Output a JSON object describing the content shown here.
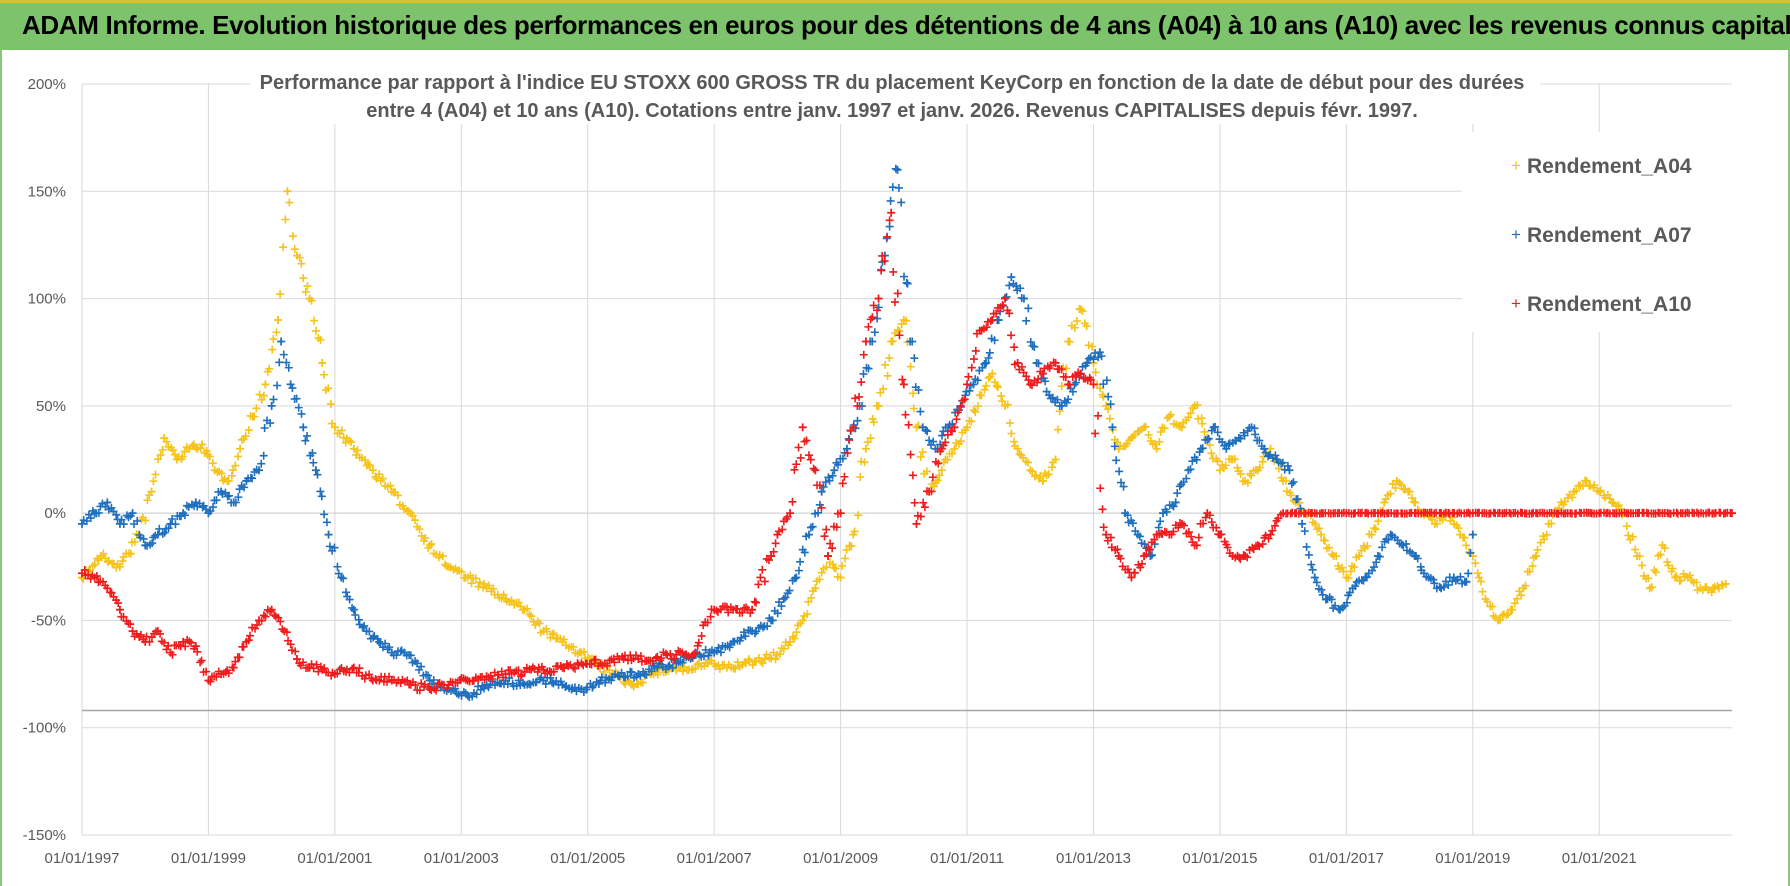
{
  "banner": {
    "title": "ADAM Informe. Evolution historique des performances en euros pour des détentions de 4 ans (A04) à 10 ans (A10) avec les revenus connus capitalisés"
  },
  "colors": {
    "banner_bg": "#7dc36b",
    "A04": "#f5c31b",
    "A07": "#1f6fbf",
    "A10": "#ee1c1c",
    "grid": "#d9d9d9"
  },
  "chart_data": {
    "type": "scatter",
    "title_lines": [
      "Performance par rapport à l'indice EU STOXX 600 GROSS TR  du placement KeyCorp en fonction de la date de début pour des durées",
      "entre 4 (A04) et 10 ans (A10).  Cotations entre janv. 1997 et janv. 2026. Revenus CAPITALISES depuis févr. 1997."
    ],
    "xlabel": "",
    "ylabel": "",
    "xlim": [
      1997.0,
      2023.1
    ],
    "ylim": [
      -150,
      200
    ],
    "y_ticks": [
      200,
      150,
      100,
      50,
      0,
      -50,
      -100,
      -150
    ],
    "y_tick_labels": [
      "200%",
      "150%",
      "100%",
      "50%",
      "0%",
      "-50%",
      "-100%",
      "-150%"
    ],
    "x_ticks": [
      1997,
      1999,
      2001,
      2003,
      2005,
      2007,
      2009,
      2011,
      2013,
      2015,
      2017,
      2019,
      2021
    ],
    "x_tick_labels": [
      "01/01/1997",
      "01/01/1999",
      "01/01/2001",
      "01/01/2003",
      "01/01/2005",
      "01/01/2007",
      "01/01/2009",
      "01/01/2011",
      "01/01/2013",
      "01/01/2015",
      "01/01/2017",
      "01/01/2019",
      "01/01/2021"
    ],
    "reference_line_y": -92,
    "legend": [
      "Rendement_A04",
      "Rendement_A07",
      "Rendement_A10"
    ],
    "series": [
      {
        "name": "Rendement_A04",
        "color": "#f5c31b",
        "x": [
          1997.0,
          1997.3,
          1997.6,
          1997.9,
          1998.1,
          1998.3,
          1998.5,
          1998.7,
          1998.9,
          1999.1,
          1999.3,
          1999.5,
          1999.7,
          1999.9,
          2000.1,
          2000.25,
          2000.4,
          2000.6,
          2000.8,
          2001.0,
          2001.3,
          2001.6,
          2001.9,
          2002.2,
          2002.5,
          2002.8,
          2003.1,
          2003.4,
          2003.7,
          2004.0,
          2004.3,
          2004.6,
          2004.9,
          2005.1,
          2005.4,
          2005.7,
          2006.0,
          2006.3,
          2006.6,
          2006.9,
          2007.2,
          2007.5,
          2007.8,
          2008.0,
          2008.2,
          2008.4,
          2008.6,
          2008.8,
          2009.0,
          2009.2,
          2009.4,
          2009.6,
          2009.8,
          2010.0,
          2010.2,
          2010.4,
          2010.6,
          2010.8,
          2011.0,
          2011.2,
          2011.4,
          2011.6,
          2011.8,
          2012.0,
          2012.2,
          2012.4,
          2012.6,
          2012.8,
          2013.0,
          2013.2,
          2013.4,
          2013.6,
          2013.8,
          2014.0,
          2014.2,
          2014.4,
          2014.6,
          2014.8,
          2015.0,
          2015.2,
          2015.4,
          2015.6,
          2015.8,
          2016.0,
          2016.2,
          2016.4,
          2016.6,
          2016.8,
          2017.0,
          2017.2,
          2017.4,
          2017.6,
          2017.8,
          2018.0,
          2018.2,
          2018.4,
          2018.6,
          2018.8,
          2019.0,
          2019.2,
          2019.4,
          2019.6,
          2019.8,
          2020.0,
          2020.2,
          2020.4,
          2020.6,
          2020.8,
          2021.0,
          2021.2,
          2021.4,
          2021.6,
          2021.8,
          2022.0,
          2022.2,
          2022.4,
          2022.6,
          2022.8,
          2023.0
        ],
        "y": [
          -30,
          -20,
          -25,
          -10,
          10,
          35,
          25,
          30,
          32,
          20,
          15,
          30,
          45,
          60,
          90,
          150,
          120,
          100,
          70,
          40,
          30,
          20,
          10,
          0,
          -15,
          -25,
          -30,
          -35,
          -40,
          -45,
          -55,
          -60,
          -65,
          -70,
          -75,
          -80,
          -75,
          -72,
          -73,
          -70,
          -72,
          -70,
          -68,
          -66,
          -60,
          -50,
          -35,
          -20,
          -30,
          -10,
          30,
          50,
          80,
          90,
          40,
          10,
          20,
          30,
          40,
          55,
          65,
          50,
          30,
          20,
          15,
          25,
          80,
          95,
          70,
          50,
          30,
          35,
          40,
          30,
          45,
          40,
          50,
          35,
          20,
          25,
          15,
          20,
          30,
          15,
          5,
          0,
          -10,
          -20,
          -30,
          -20,
          -10,
          5,
          15,
          10,
          0,
          -5,
          0,
          -10,
          -20,
          -40,
          -50,
          -45,
          -35,
          -20,
          -5,
          5,
          10,
          15,
          10,
          5,
          0,
          -20,
          -35,
          -15,
          -30,
          -30,
          -35,
          -35,
          -33
        ]
      },
      {
        "name": "Rendement_A07",
        "color": "#1f6fbf",
        "x": [
          1997.0,
          1997.2,
          1997.4,
          1997.6,
          1997.8,
          1998.0,
          1998.2,
          1998.4,
          1998.6,
          1998.8,
          1999.0,
          1999.2,
          1999.4,
          1999.6,
          1999.8,
          2000.0,
          2000.15,
          2000.3,
          2000.5,
          2000.7,
          2000.9,
          2001.1,
          2001.3,
          2001.5,
          2001.7,
          2001.9,
          2002.1,
          2002.3,
          2002.5,
          2002.8,
          2003.1,
          2003.4,
          2003.7,
          2004.0,
          2004.3,
          2004.6,
          2004.9,
          2005.2,
          2005.5,
          2005.8,
          2006.1,
          2006.4,
          2006.7,
          2007.0,
          2007.3,
          2007.6,
          2007.9,
          2008.1,
          2008.3,
          2008.5,
          2008.7,
          2008.9,
          2009.1,
          2009.3,
          2009.5,
          2009.7,
          2009.9,
          2010.1,
          2010.3,
          2010.5,
          2010.7,
          2010.9,
          2011.1,
          2011.3,
          2011.5,
          2011.7,
          2011.9,
          2012.1,
          2012.3,
          2012.5,
          2012.7,
          2012.9,
          2013.1,
          2013.3,
          2013.5,
          2013.7,
          2013.9,
          2014.1,
          2014.3,
          2014.5,
          2014.7,
          2014.9,
          2015.1,
          2015.3,
          2015.5,
          2015.7,
          2015.9,
          2016.1,
          2016.3,
          2016.5,
          2016.7,
          2016.9,
          2017.1,
          2017.3,
          2017.5,
          2017.7,
          2017.9,
          2018.1,
          2018.3,
          2018.5,
          2018.7,
          2018.9,
          2019.0
        ],
        "y": [
          -5,
          0,
          5,
          -5,
          0,
          -15,
          -10,
          -5,
          0,
          5,
          0,
          10,
          5,
          15,
          20,
          50,
          80,
          60,
          40,
          20,
          -10,
          -30,
          -45,
          -55,
          -60,
          -65,
          -65,
          -70,
          -78,
          -82,
          -85,
          -80,
          -78,
          -80,
          -78,
          -80,
          -82,
          -78,
          -76,
          -75,
          -72,
          -70,
          -66,
          -65,
          -60,
          -55,
          -50,
          -40,
          -30,
          -10,
          10,
          20,
          30,
          50,
          80,
          120,
          160,
          80,
          40,
          30,
          40,
          50,
          60,
          70,
          90,
          110,
          100,
          70,
          55,
          50,
          60,
          70,
          75,
          40,
          0,
          -10,
          -20,
          0,
          5,
          20,
          30,
          40,
          30,
          35,
          40,
          30,
          25,
          20,
          -5,
          -30,
          -40,
          -45,
          -35,
          -30,
          -20,
          -10,
          -15,
          -20,
          -30,
          -35,
          -30,
          -32,
          -10
        ]
      },
      {
        "name": "Rendement_A10",
        "color": "#ee1c1c",
        "x": [
          1997.0,
          1997.2,
          1997.4,
          1997.6,
          1997.8,
          1998.0,
          1998.2,
          1998.4,
          1998.6,
          1998.8,
          1999.0,
          1999.2,
          1999.4,
          1999.6,
          1999.8,
          2000.0,
          2000.2,
          2000.4,
          2000.6,
          2000.8,
          2001.0,
          2001.3,
          2001.6,
          2001.9,
          2002.2,
          2002.5,
          2002.8,
          2003.1,
          2003.4,
          2003.7,
          2004.0,
          2004.3,
          2004.6,
          2004.9,
          2005.2,
          2005.5,
          2005.8,
          2006.1,
          2006.4,
          2006.7,
          2007.0,
          2007.3,
          2007.6,
          2007.9,
          2008.0,
          2008.2,
          2008.4,
          2008.6,
          2008.8,
          2009.0,
          2009.2,
          2009.4,
          2009.6,
          2009.8,
          2010.0,
          2010.2,
          2010.4,
          2010.6,
          2010.8,
          2011.0,
          2011.2,
          2011.4,
          2011.6,
          2011.8,
          2012.0,
          2012.2,
          2012.4,
          2012.6,
          2012.8,
          2013.0,
          2013.2,
          2013.4,
          2013.6,
          2013.8,
          2014.0,
          2014.2,
          2014.4,
          2014.6,
          2014.8,
          2015.0,
          2015.2,
          2015.4,
          2015.6,
          2015.8,
          2016.0,
          2016.5,
          2017.0,
          2017.5,
          2018.0,
          2018.5,
          2019.0,
          2019.5,
          2020.0,
          2020.5,
          2021.0,
          2021.5,
          2022.0,
          2022.5,
          2023.1
        ],
        "y": [
          -28,
          -30,
          -35,
          -45,
          -55,
          -60,
          -55,
          -65,
          -60,
          -62,
          -78,
          -75,
          -72,
          -60,
          -50,
          -45,
          -55,
          -68,
          -72,
          -73,
          -75,
          -72,
          -78,
          -78,
          -80,
          -82,
          -80,
          -78,
          -76,
          -75,
          -74,
          -73,
          -72,
          -70,
          -70,
          -68,
          -68,
          -67,
          -66,
          -65,
          -45,
          -45,
          -45,
          -20,
          -10,
          0,
          40,
          20,
          -20,
          0,
          40,
          80,
          100,
          140,
          60,
          -5,
          10,
          30,
          40,
          60,
          85,
          90,
          100,
          70,
          60,
          65,
          70,
          60,
          65,
          60,
          -10,
          -20,
          -30,
          -20,
          -10,
          -10,
          -5,
          -15,
          0,
          -10,
          -20,
          -20,
          -15,
          -10,
          0,
          0,
          0,
          0,
          0,
          0,
          0,
          0,
          0,
          0,
          0,
          0,
          0,
          0,
          0
        ]
      }
    ]
  }
}
